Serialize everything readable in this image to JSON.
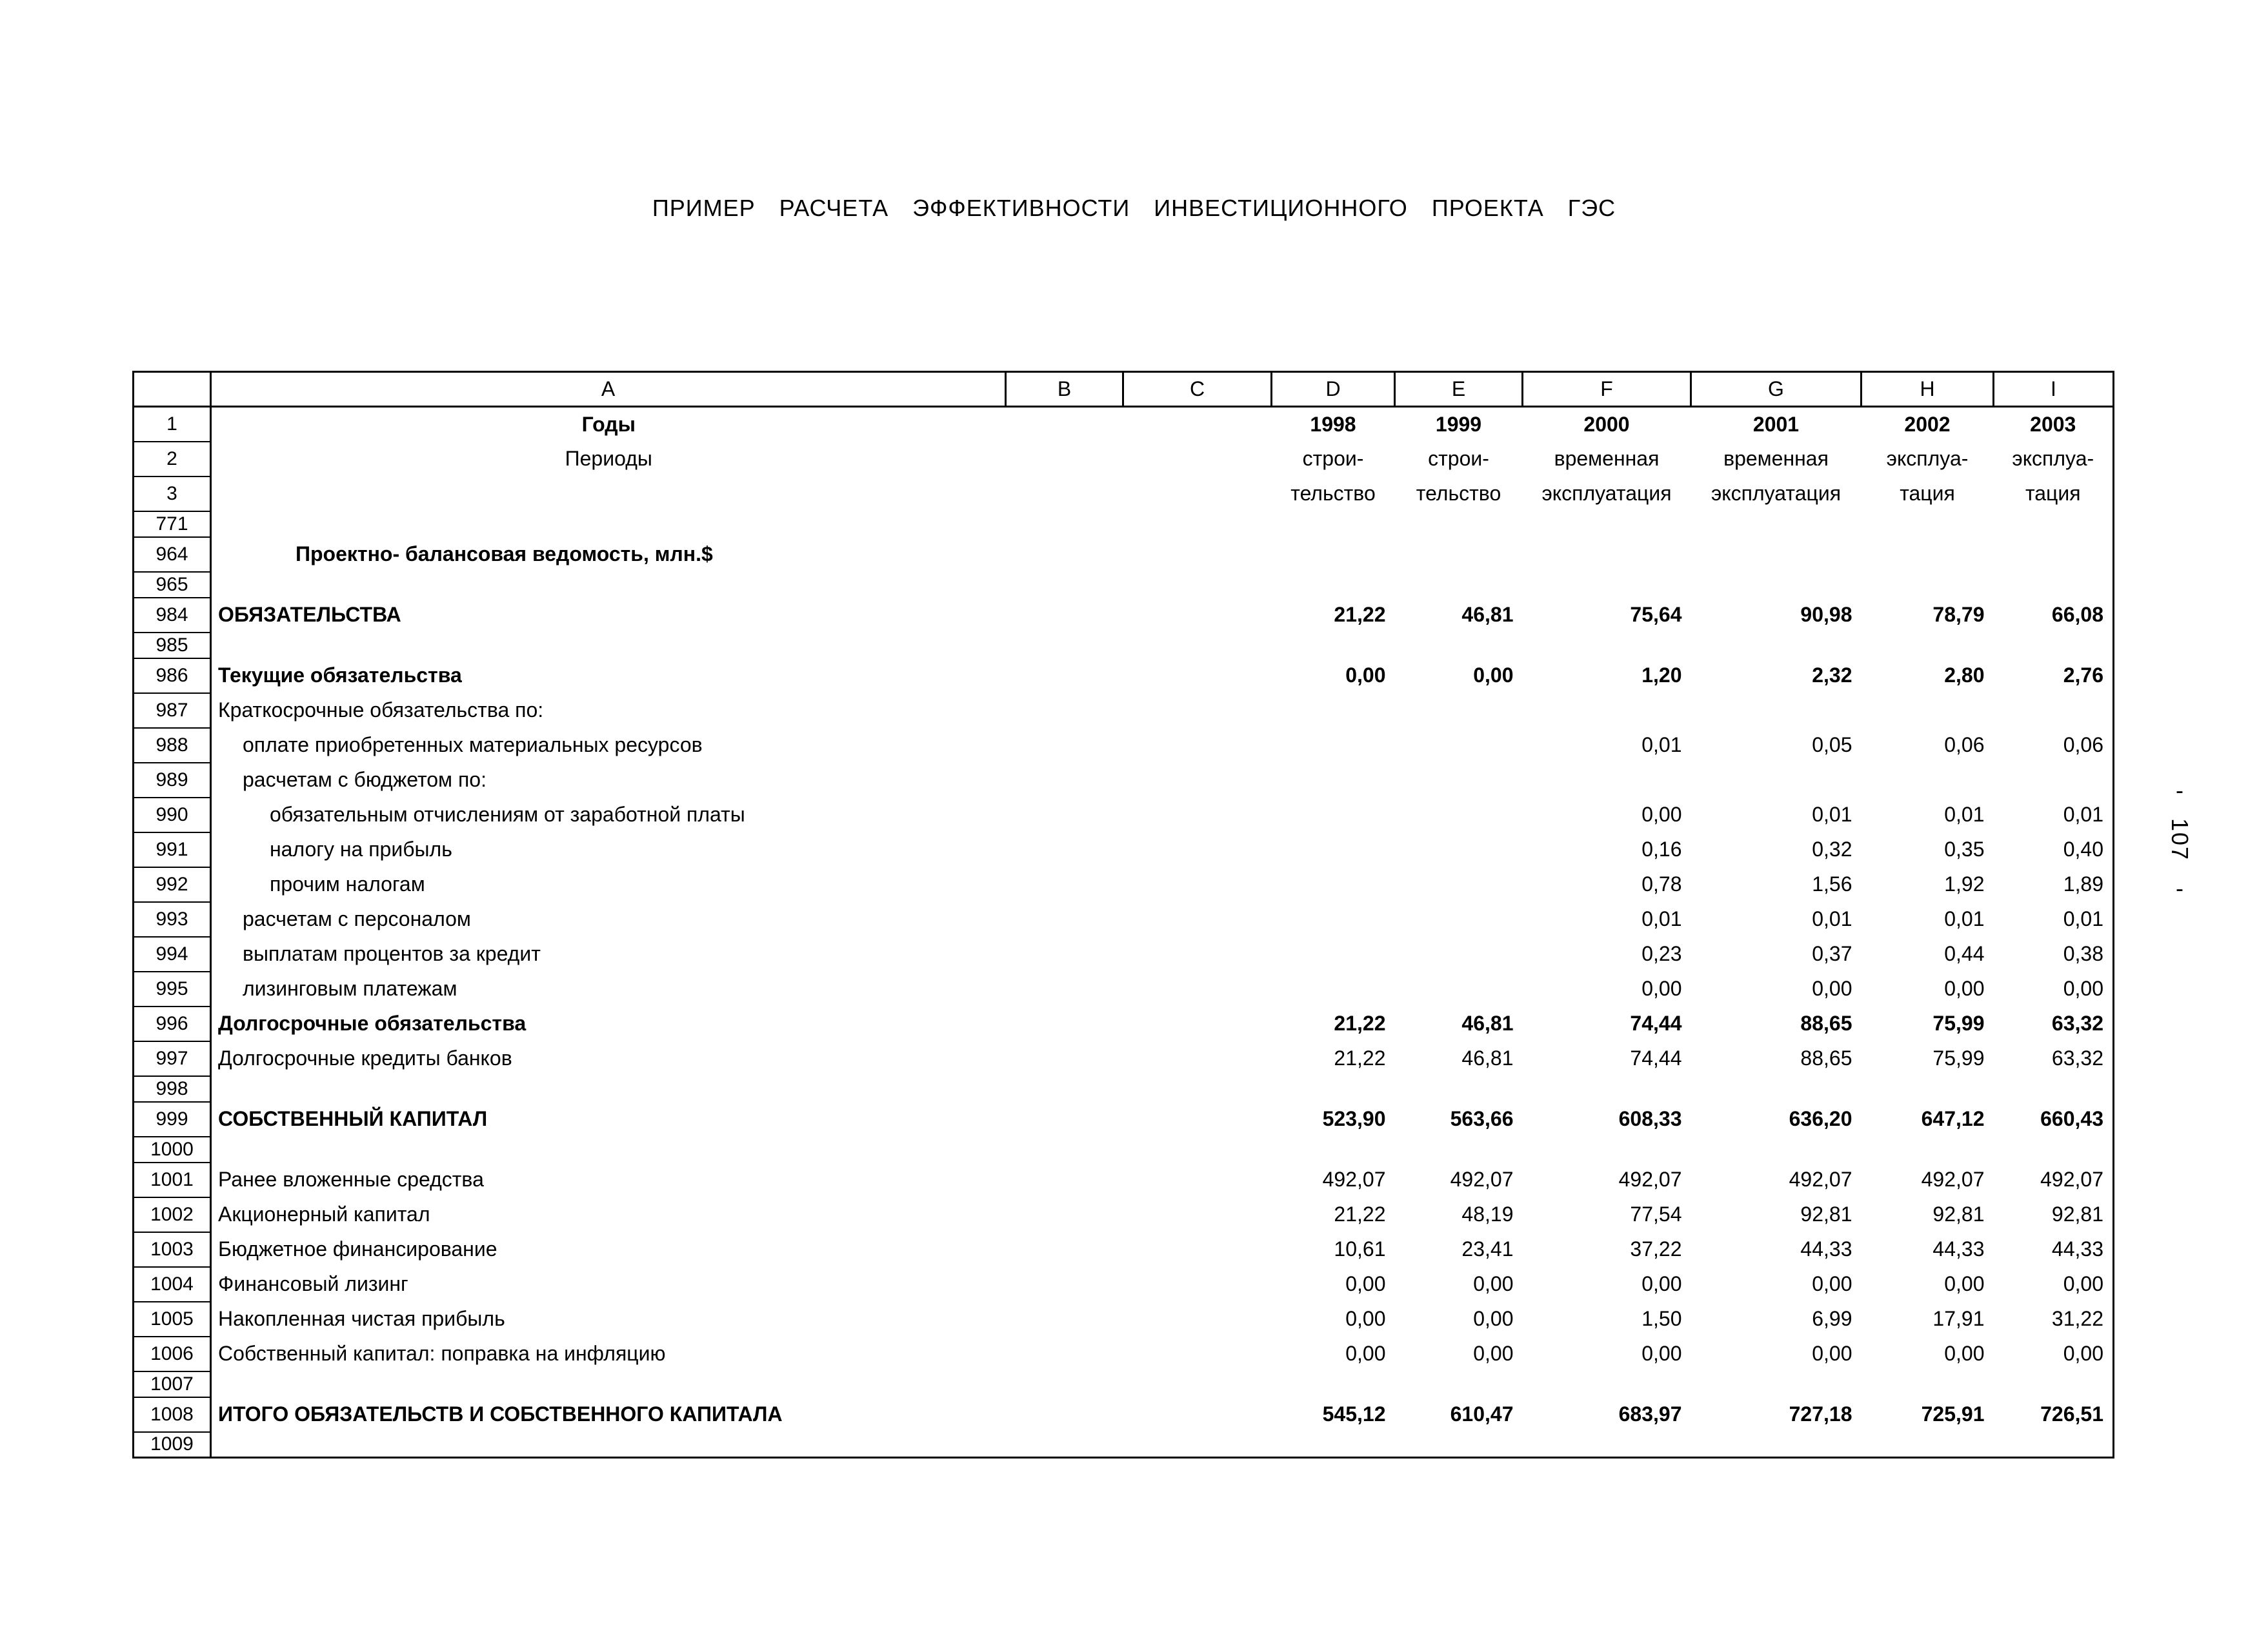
{
  "page": {
    "title": "ПРИМЕР РАСЧЕТА ЭФФЕКТИВНОСТИ ИНВЕСТИЦИОННОГО ПРОЕКТА ГЭС",
    "side_dash": "-",
    "side_number": "107"
  },
  "table": {
    "column_letters": [
      "A",
      "B",
      "C",
      "D",
      "E",
      "F",
      "G",
      "H",
      "I"
    ],
    "rows": [
      {
        "num": "1",
        "label": "Годы",
        "bold": true,
        "align": "center",
        "values_align": "center",
        "values": [
          "1998",
          "1999",
          "2000",
          "2001",
          "2002",
          "2003"
        ]
      },
      {
        "num": "2",
        "label": "Периоды",
        "align": "center",
        "values_align": "center",
        "values": [
          "строи-",
          "строи-",
          "временная",
          "временная",
          "эксплуа-",
          "эксплуа-"
        ]
      },
      {
        "num": "3",
        "label": "",
        "align": "center",
        "values_align": "center",
        "values": [
          "тельство",
          "тельство",
          "эксплуатация",
          "эксплуатация",
          "тация",
          "тация"
        ]
      },
      {
        "num": "771",
        "label": "",
        "spacer": true
      },
      {
        "num": "964",
        "label": "Проектно- балансовая ведомость, млн.$",
        "bold": true,
        "indent": 3
      },
      {
        "num": "965",
        "label": "",
        "spacer": true
      },
      {
        "num": "984",
        "label": "ОБЯЗАТЕЛЬСТВА",
        "bold": true,
        "values": [
          "21,22",
          "46,81",
          "75,64",
          "90,98",
          "78,79",
          "66,08"
        ]
      },
      {
        "num": "985",
        "label": "",
        "spacer": true
      },
      {
        "num": "986",
        "label": "Текущие обязательства",
        "bold": true,
        "values": [
          "0,00",
          "0,00",
          "1,20",
          "2,32",
          "2,80",
          "2,76"
        ]
      },
      {
        "num": "987",
        "label": "Краткосрочные обязательства по:"
      },
      {
        "num": "988",
        "label": "оплате приобретенных материальных ресурсов",
        "indent": 1,
        "values": [
          "",
          "",
          "0,01",
          "0,05",
          "0,06",
          "0,06"
        ]
      },
      {
        "num": "989",
        "label": "расчетам с бюджетом по:",
        "indent": 1
      },
      {
        "num": "990",
        "label": "обязательным отчислениям от заработной платы",
        "indent": 2,
        "values": [
          "",
          "",
          "0,00",
          "0,01",
          "0,01",
          "0,01"
        ]
      },
      {
        "num": "991",
        "label": "налогу на прибыль",
        "indent": 2,
        "values": [
          "",
          "",
          "0,16",
          "0,32",
          "0,35",
          "0,40"
        ]
      },
      {
        "num": "992",
        "label": "прочим налогам",
        "indent": 2,
        "values": [
          "",
          "",
          "0,78",
          "1,56",
          "1,92",
          "1,89"
        ]
      },
      {
        "num": "993",
        "label": "расчетам с персоналом",
        "indent": 1,
        "values": [
          "",
          "",
          "0,01",
          "0,01",
          "0,01",
          "0,01"
        ]
      },
      {
        "num": "994",
        "label": "выплатам процентов за кредит",
        "indent": 1,
        "values": [
          "",
          "",
          "0,23",
          "0,37",
          "0,44",
          "0,38"
        ]
      },
      {
        "num": "995",
        "label": "лизинговым платежам",
        "indent": 1,
        "values": [
          "",
          "",
          "0,00",
          "0,00",
          "0,00",
          "0,00"
        ]
      },
      {
        "num": "996",
        "label": "Долгосрочные обязательства",
        "bold": true,
        "values": [
          "21,22",
          "46,81",
          "74,44",
          "88,65",
          "75,99",
          "63,32"
        ]
      },
      {
        "num": "997",
        "label": "Долгосрочные кредиты банков",
        "values": [
          "21,22",
          "46,81",
          "74,44",
          "88,65",
          "75,99",
          "63,32"
        ]
      },
      {
        "num": "998",
        "label": "",
        "spacer": true
      },
      {
        "num": "999",
        "label": "СОБСТВЕННЫЙ КАПИТАЛ",
        "bold": true,
        "values": [
          "523,90",
          "563,66",
          "608,33",
          "636,20",
          "647,12",
          "660,43"
        ]
      },
      {
        "num": "1000",
        "label": "",
        "spacer": true
      },
      {
        "num": "1001",
        "label": "Ранее вложенные средства",
        "values": [
          "492,07",
          "492,07",
          "492,07",
          "492,07",
          "492,07",
          "492,07"
        ]
      },
      {
        "num": "1002",
        "label": "Акционерный капитал",
        "values": [
          "21,22",
          "48,19",
          "77,54",
          "92,81",
          "92,81",
          "92,81"
        ]
      },
      {
        "num": "1003",
        "label": "Бюджетное финансирование",
        "values": [
          "10,61",
          "23,41",
          "37,22",
          "44,33",
          "44,33",
          "44,33"
        ]
      },
      {
        "num": "1004",
        "label": "Финансовый лизинг",
        "values": [
          "0,00",
          "0,00",
          "0,00",
          "0,00",
          "0,00",
          "0,00"
        ]
      },
      {
        "num": "1005",
        "label": "Накопленная чистая прибыль",
        "values": [
          "0,00",
          "0,00",
          "1,50",
          "6,99",
          "17,91",
          "31,22"
        ]
      },
      {
        "num": "1006",
        "label": "Собственный капитал: поправка на инфляцию",
        "values": [
          "0,00",
          "0,00",
          "0,00",
          "0,00",
          "0,00",
          "0,00"
        ]
      },
      {
        "num": "1007",
        "label": "",
        "spacer": true
      },
      {
        "num": "1008",
        "label": "ИТОГО ОБЯЗАТЕЛЬСТВ И СОБСТВЕННОГО КАПИТАЛА",
        "bold": true,
        "values": [
          "545,12",
          "610,47",
          "683,97",
          "727,18",
          "725,91",
          "726,51"
        ]
      },
      {
        "num": "1009",
        "label": "",
        "spacer": true
      }
    ]
  }
}
